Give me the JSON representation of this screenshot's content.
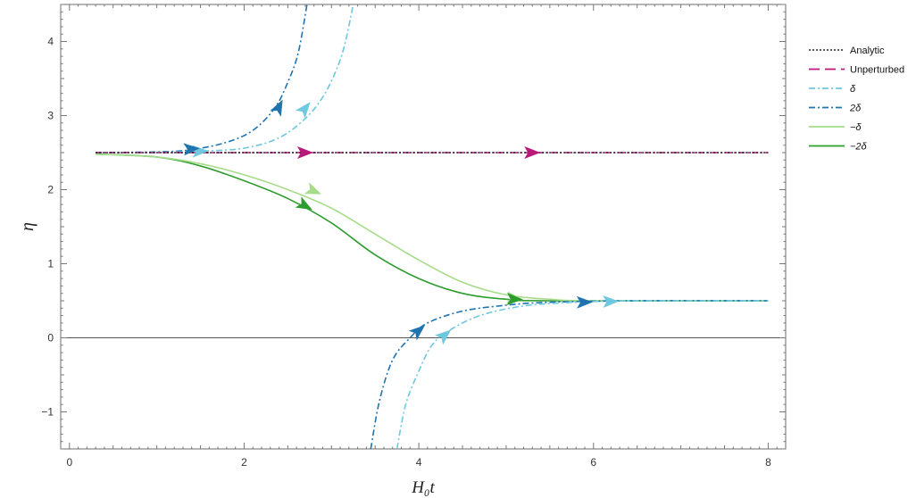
{
  "chart_data": {
    "type": "line",
    "xlabel": "H₀t",
    "ylabel": "η",
    "xlim": [
      -0.1,
      8.2
    ],
    "ylim": [
      -1.5,
      4.5
    ],
    "x_ticks": [
      0,
      2,
      4,
      6,
      8
    ],
    "y_ticks": [
      -1,
      0,
      1,
      2,
      3,
      4
    ],
    "x_tick_labels": [
      "0",
      "2",
      "4",
      "6",
      "8"
    ],
    "y_tick_labels": [
      "−1",
      "0",
      "1",
      "2",
      "3",
      "4"
    ],
    "grid": false,
    "legend_position": "right",
    "zero_line": 0,
    "series": [
      {
        "name": "Analytic",
        "color": "#000000",
        "style": "dotted",
        "points": [
          [
            0.3,
            2.5
          ],
          [
            8.0,
            2.5
          ]
        ],
        "arrows": []
      },
      {
        "name": "Unperturbed",
        "color": "#b8197a",
        "style": "dashdot",
        "points": [
          [
            0.3,
            2.5
          ],
          [
            8.0,
            2.5
          ]
        ],
        "arrows": [
          [
            2.7,
            2.5
          ],
          [
            5.3,
            2.5
          ]
        ]
      },
      {
        "name": "δ",
        "color": "#6ec8e0",
        "style": "dashdot",
        "segments": [
          [
            [
              0.3,
              2.5
            ],
            [
              1.0,
              2.505
            ],
            [
              1.5,
              2.52
            ],
            [
              2.0,
              2.56
            ],
            [
              2.4,
              2.7
            ],
            [
              2.7,
              2.96
            ],
            [
              2.9,
              3.25
            ],
            [
              3.05,
              3.6
            ],
            [
              3.15,
              3.95
            ],
            [
              3.25,
              4.5
            ]
          ],
          [
            [
              3.75,
              -1.5
            ],
            [
              3.85,
              -0.9
            ],
            [
              4.0,
              -0.45
            ],
            [
              4.15,
              -0.1
            ],
            [
              4.35,
              0.1
            ],
            [
              4.7,
              0.3
            ],
            [
              5.2,
              0.43
            ],
            [
              5.8,
              0.48
            ],
            [
              6.5,
              0.5
            ],
            [
              8.0,
              0.5
            ]
          ]
        ],
        "arrows": [
          [
            1.5,
            2.52
          ],
          [
            2.7,
            3.1
          ],
          [
            4.3,
            0.04
          ],
          [
            6.2,
            0.49
          ]
        ]
      },
      {
        "name": "2δ",
        "color": "#1f74b0",
        "style": "dashdot",
        "segments": [
          [
            [
              0.3,
              2.5
            ],
            [
              1.0,
              2.51
            ],
            [
              1.4,
              2.54
            ],
            [
              1.8,
              2.64
            ],
            [
              2.1,
              2.8
            ],
            [
              2.35,
              3.1
            ],
            [
              2.5,
              3.45
            ],
            [
              2.62,
              3.85
            ],
            [
              2.72,
              4.5
            ]
          ],
          [
            [
              3.45,
              -1.5
            ],
            [
              3.55,
              -0.85
            ],
            [
              3.7,
              -0.3
            ],
            [
              3.9,
              0.0
            ],
            [
              4.1,
              0.2
            ],
            [
              4.5,
              0.36
            ],
            [
              5.0,
              0.44
            ],
            [
              5.5,
              0.48
            ],
            [
              6.5,
              0.5
            ],
            [
              8.0,
              0.5
            ]
          ]
        ],
        "arrows": [
          [
            1.4,
            2.55
          ],
          [
            2.4,
            3.12
          ],
          [
            4.0,
            0.1
          ],
          [
            5.9,
            0.48
          ]
        ]
      },
      {
        "name": "−δ",
        "color": "#a6dc8a",
        "style": "solid",
        "points": [
          [
            0.3,
            2.48
          ],
          [
            1.0,
            2.44
          ],
          [
            1.5,
            2.35
          ],
          [
            2.0,
            2.2
          ],
          [
            2.5,
            2.0
          ],
          [
            3.0,
            1.75
          ],
          [
            3.5,
            1.4
          ],
          [
            4.0,
            1.05
          ],
          [
            4.5,
            0.75
          ],
          [
            5.0,
            0.58
          ],
          [
            5.5,
            0.52
          ],
          [
            6.0,
            0.5
          ],
          [
            8.0,
            0.5
          ]
        ],
        "arrows": [
          [
            2.8,
            1.98
          ],
          [
            5.1,
            0.53
          ]
        ]
      },
      {
        "name": "−2δ",
        "color": "#2e9c2e",
        "style": "solid",
        "points": [
          [
            0.3,
            2.48
          ],
          [
            1.0,
            2.44
          ],
          [
            1.5,
            2.32
          ],
          [
            2.0,
            2.12
          ],
          [
            2.5,
            1.88
          ],
          [
            3.0,
            1.55
          ],
          [
            3.5,
            1.12
          ],
          [
            4.0,
            0.8
          ],
          [
            4.5,
            0.6
          ],
          [
            5.0,
            0.52
          ],
          [
            5.5,
            0.5
          ],
          [
            8.0,
            0.5
          ]
        ],
        "arrows": [
          [
            2.7,
            1.78
          ],
          [
            5.1,
            0.52
          ]
        ]
      }
    ]
  }
}
